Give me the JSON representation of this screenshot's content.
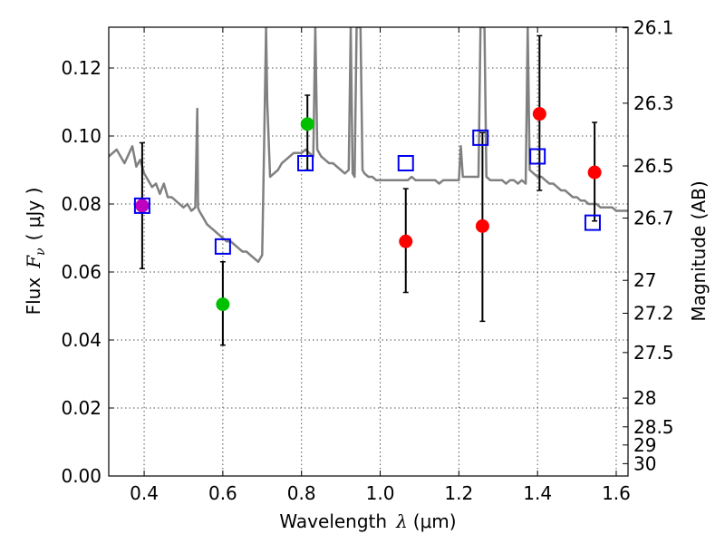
{
  "chart_data": {
    "type": "scatter",
    "title": "",
    "xlabel_prefix": "Wavelength",
    "xlabel_symbol": "λ",
    "xlabel_unit": "(μm)",
    "ylabel_prefix": "Flux",
    "ylabel_symbol": "F",
    "ylabel_subscript": "ν",
    "ylabel_unit": "( μJy )",
    "y2label": "Magnitude (AB)",
    "xlim": [
      0.31,
      1.63
    ],
    "ylim": [
      0.0,
      0.132
    ],
    "xticks": [
      0.4,
      0.6,
      0.8,
      1.0,
      1.2,
      1.4,
      1.6
    ],
    "xtick_labels": [
      "0.4",
      "0.6",
      "0.8",
      "1.0",
      "1.2",
      "1.4",
      "1.6"
    ],
    "yticks": [
      0.0,
      0.02,
      0.04,
      0.06,
      0.08,
      0.1,
      0.12
    ],
    "ytick_labels": [
      "0.00",
      "0.02",
      "0.04",
      "0.06",
      "0.08",
      "0.10",
      "0.12"
    ],
    "mag_ticks": [
      26.1,
      26.3,
      26.5,
      26.7,
      27,
      27.2,
      27.5,
      28,
      28.5,
      29,
      30
    ],
    "mag_tick_labels": [
      "26.1",
      "26.3",
      "26.5",
      "26.7",
      "27",
      "27.2",
      "27.5",
      "28",
      "28.5",
      "29",
      "30"
    ],
    "grid": true,
    "colors": {
      "model": "#808080",
      "green": "#00c000",
      "red": "#ff0000",
      "magenta": "#c000c0",
      "model_box": "#0000ee",
      "errorbar": "#000000"
    },
    "series": [
      {
        "name": "observed",
        "points": [
          {
            "x": 0.395,
            "y": 0.0795,
            "yerr_low": 0.061,
            "yerr_high": 0.098,
            "color": "magenta"
          },
          {
            "x": 0.6,
            "y": 0.0505,
            "yerr_low": 0.0385,
            "yerr_high": 0.063,
            "color": "green"
          },
          {
            "x": 0.815,
            "y": 0.1035,
            "yerr_low": 0.09,
            "yerr_high": 0.112,
            "color": "green"
          },
          {
            "x": 1.065,
            "y": 0.069,
            "yerr_low": 0.054,
            "yerr_high": 0.0845,
            "color": "red"
          },
          {
            "x": 1.26,
            "y": 0.0735,
            "yerr_low": 0.0455,
            "yerr_high": 0.101,
            "color": "red"
          },
          {
            "x": 1.405,
            "y": 0.1065,
            "yerr_low": 0.084,
            "yerr_high": 0.1295,
            "color": "red"
          },
          {
            "x": 1.545,
            "y": 0.0893,
            "yerr_low": 0.075,
            "yerr_high": 0.104,
            "color": "red"
          }
        ]
      },
      {
        "name": "model_photometry",
        "points": [
          {
            "x": 0.395,
            "y": 0.0795
          },
          {
            "x": 0.6,
            "y": 0.0675
          },
          {
            "x": 0.81,
            "y": 0.092
          },
          {
            "x": 1.065,
            "y": 0.092
          },
          {
            "x": 1.255,
            "y": 0.0995
          },
          {
            "x": 1.4,
            "y": 0.094
          },
          {
            "x": 1.54,
            "y": 0.0745
          }
        ]
      },
      {
        "name": "model_spectrum",
        "x": [
          0.31,
          0.33,
          0.35,
          0.37,
          0.38,
          0.39,
          0.4,
          0.41,
          0.42,
          0.43,
          0.44,
          0.45,
          0.46,
          0.47,
          0.48,
          0.49,
          0.5,
          0.51,
          0.52,
          0.53,
          0.535,
          0.537,
          0.54,
          0.55,
          0.56,
          0.57,
          0.58,
          0.59,
          0.6,
          0.61,
          0.62,
          0.63,
          0.64,
          0.65,
          0.66,
          0.67,
          0.68,
          0.69,
          0.7,
          0.705,
          0.71,
          0.713,
          0.72,
          0.73,
          0.74,
          0.75,
          0.76,
          0.77,
          0.78,
          0.79,
          0.8,
          0.81,
          0.82,
          0.83,
          0.835,
          0.84,
          0.85,
          0.86,
          0.87,
          0.88,
          0.89,
          0.9,
          0.91,
          0.92,
          0.925,
          0.93,
          0.935,
          0.94,
          0.945,
          0.95,
          0.955,
          0.96,
          0.97,
          0.98,
          0.99,
          1.0,
          1.01,
          1.02,
          1.03,
          1.04,
          1.05,
          1.06,
          1.07,
          1.08,
          1.09,
          1.1,
          1.11,
          1.12,
          1.13,
          1.14,
          1.15,
          1.16,
          1.17,
          1.18,
          1.19,
          1.2,
          1.205,
          1.21,
          1.22,
          1.23,
          1.24,
          1.25,
          1.255,
          1.26,
          1.265,
          1.27,
          1.28,
          1.29,
          1.3,
          1.31,
          1.32,
          1.33,
          1.34,
          1.35,
          1.36,
          1.37,
          1.375,
          1.38,
          1.39,
          1.4,
          1.41,
          1.42,
          1.43,
          1.44,
          1.45,
          1.46,
          1.47,
          1.48,
          1.49,
          1.5,
          1.51,
          1.52,
          1.53,
          1.54,
          1.55,
          1.56,
          1.57,
          1.58,
          1.59,
          1.6,
          1.61,
          1.62,
          1.63
        ],
        "y": [
          0.094,
          0.096,
          0.092,
          0.097,
          0.091,
          0.093,
          0.089,
          0.087,
          0.085,
          0.086,
          0.083,
          0.086,
          0.082,
          0.082,
          0.081,
          0.08,
          0.079,
          0.08,
          0.078,
          0.079,
          0.108,
          0.079,
          0.078,
          0.076,
          0.074,
          0.073,
          0.072,
          0.071,
          0.07,
          0.069,
          0.069,
          0.068,
          0.067,
          0.066,
          0.066,
          0.065,
          0.064,
          0.063,
          0.065,
          0.098,
          0.132,
          0.11,
          0.088,
          0.089,
          0.09,
          0.092,
          0.093,
          0.094,
          0.095,
          0.095,
          0.095,
          0.096,
          0.095,
          0.094,
          0.132,
          0.096,
          0.094,
          0.093,
          0.092,
          0.092,
          0.091,
          0.09,
          0.089,
          0.09,
          0.132,
          0.089,
          0.088,
          0.132,
          0.132,
          0.132,
          0.09,
          0.089,
          0.088,
          0.088,
          0.087,
          0.087,
          0.087,
          0.087,
          0.087,
          0.087,
          0.087,
          0.087,
          0.087,
          0.088,
          0.087,
          0.087,
          0.087,
          0.087,
          0.087,
          0.087,
          0.086,
          0.087,
          0.087,
          0.087,
          0.087,
          0.087,
          0.097,
          0.088,
          0.088,
          0.088,
          0.088,
          0.088,
          0.132,
          0.132,
          0.132,
          0.088,
          0.087,
          0.087,
          0.087,
          0.087,
          0.086,
          0.087,
          0.087,
          0.086,
          0.087,
          0.086,
          0.132,
          0.09,
          0.089,
          0.088,
          0.088,
          0.087,
          0.086,
          0.086,
          0.085,
          0.084,
          0.084,
          0.083,
          0.082,
          0.082,
          0.081,
          0.081,
          0.08,
          0.08,
          0.08,
          0.079,
          0.079,
          0.079,
          0.079,
          0.078,
          0.078,
          0.078,
          0.078
        ]
      }
    ]
  }
}
